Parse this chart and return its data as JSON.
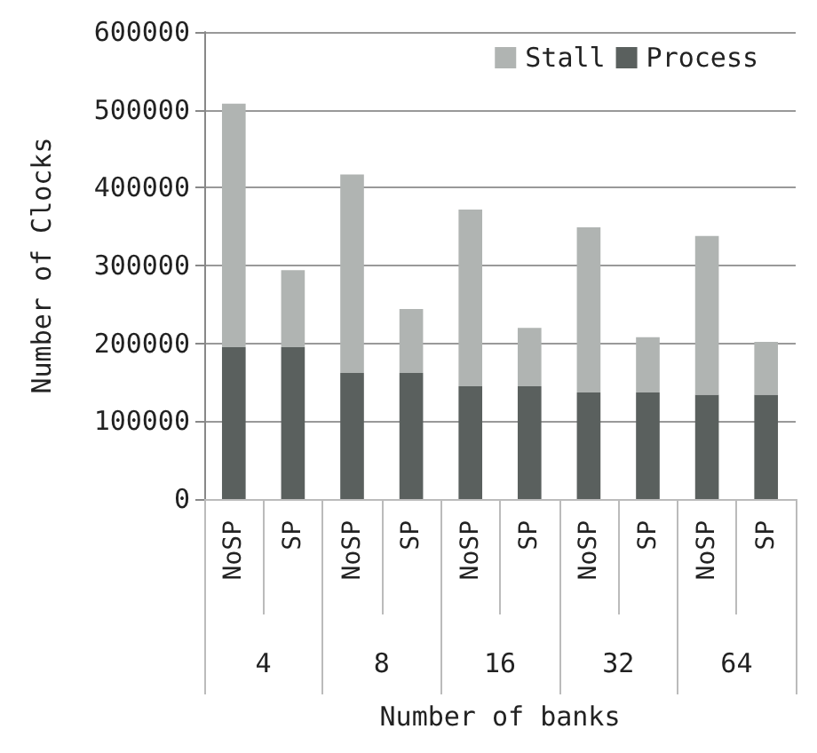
{
  "chart_data": {
    "type": "bar",
    "stacked": true,
    "xlabel": "Number of banks",
    "ylabel": "Number of Clocks",
    "categories": [
      "NoSP",
      "SP",
      "NoSP",
      "SP",
      "NoSP",
      "SP",
      "NoSP",
      "SP",
      "NoSP",
      "SP"
    ],
    "annotations": [
      "4",
      "8",
      "16",
      "32",
      "64"
    ],
    "series": [
      {
        "name": "Process",
        "color": "#5a605e",
        "values": [
          195000,
          195000,
          162000,
          162000,
          145000,
          145000,
          137000,
          137000,
          134000,
          134000
        ]
      },
      {
        "name": "Stall",
        "color": "#b0b4b2",
        "values": [
          313000,
          99000,
          255000,
          82000,
          227000,
          75000,
          212000,
          71000,
          204000,
          68000
        ]
      }
    ],
    "ylim": [
      0,
      600000
    ],
    "yticks": [
      0,
      100000,
      200000,
      300000,
      400000,
      500000,
      600000
    ],
    "grid": "y",
    "legend": "top right"
  }
}
